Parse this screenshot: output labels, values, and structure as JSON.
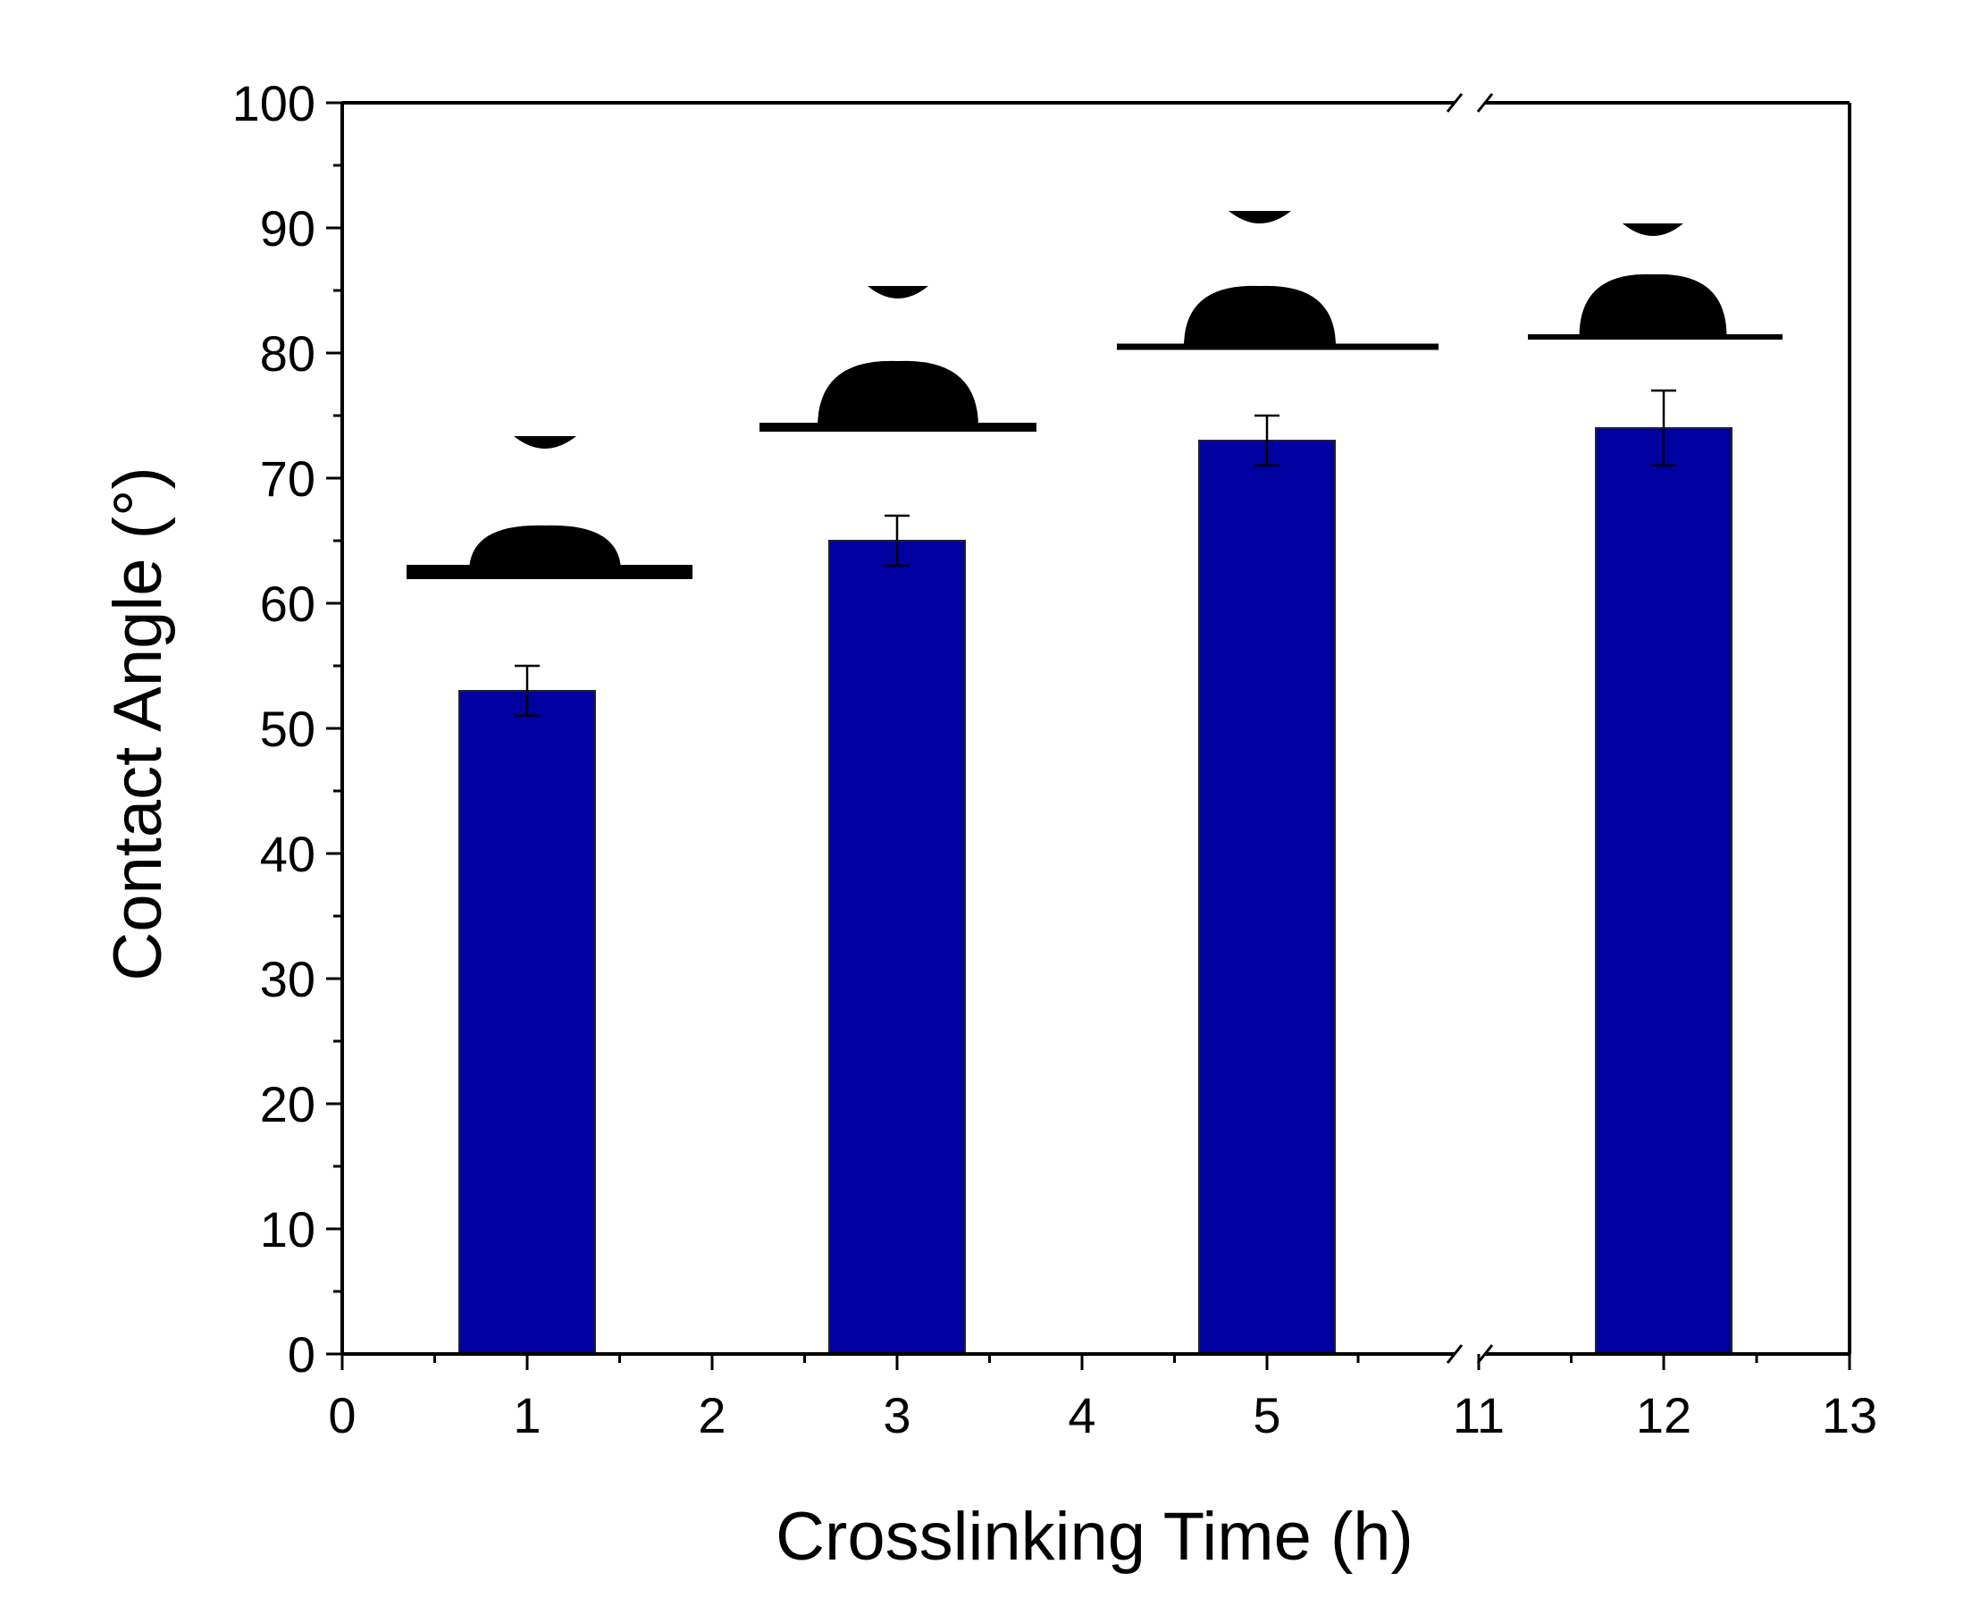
{
  "chart_data": {
    "type": "bar",
    "title": "",
    "xlabel": "Crosslinking Time (h)",
    "ylabel": "Contact Angle (°)",
    "ylim": [
      0,
      100
    ],
    "y_ticks": [
      0,
      10,
      20,
      30,
      40,
      50,
      60,
      70,
      80,
      90,
      100
    ],
    "x_ticks": [
      "0",
      "1",
      "2",
      "3",
      "4",
      "5",
      "11",
      "12",
      "13"
    ],
    "x_axis_break": "between 5 and 11",
    "categories": [
      "1",
      "3",
      "5",
      "12"
    ],
    "values": [
      53,
      65,
      73,
      74
    ],
    "error": [
      2,
      2,
      2,
      3
    ],
    "bar_color": "#0000a0",
    "insets": [
      "water-droplet-image-1h",
      "water-droplet-image-3h",
      "water-droplet-image-5h",
      "water-droplet-image-12h"
    ]
  }
}
